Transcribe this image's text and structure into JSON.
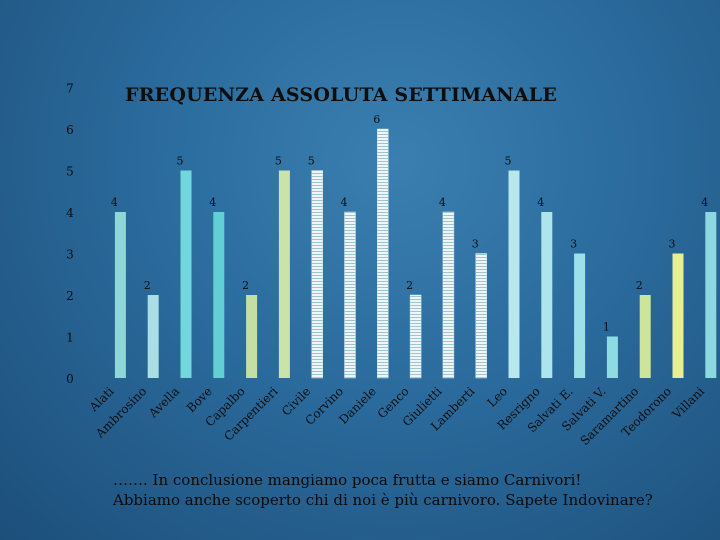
{
  "chart_data": {
    "type": "bar",
    "title": "FREQUENZA ASSOLUTA SETTIMANALE",
    "xlabel": "",
    "ylabel": "",
    "ylim": [
      0,
      7
    ],
    "yticks": [
      "0",
      "1",
      "2",
      "3",
      "4",
      "5",
      "6",
      "7"
    ],
    "grid": false,
    "categories": [
      "Alati",
      "Ambrosino",
      "Avella",
      "Bove",
      "Capalbo",
      "Carpentieri",
      "Civile",
      "Corvino",
      "Daniele",
      "Genco",
      "Giulietti",
      "Lamberti",
      "Leo",
      "Resrigno",
      "Salvati E.",
      "Salvati V.",
      "Saramartino",
      "Teodorono",
      "Villani"
    ],
    "values": [
      4,
      2,
      5,
      4,
      2,
      5,
      5,
      4,
      6,
      2,
      4,
      3,
      5,
      4,
      3,
      1,
      2,
      3,
      4
    ],
    "colors": [
      "#8fd6d8",
      "#a9dfe4",
      "#72d6dc",
      "#62cfd4",
      "#c2dfa6",
      "#c9e3a8",
      "#e9f2f4",
      "#d6ecee",
      "#d6ecee",
      "#d6ecee",
      "#dcf0a0",
      "#dcf0a0",
      "#b8e8ee",
      "#aee4ec",
      "#9de0e8",
      "#8fdbe4",
      "#cce59a",
      "#e7ef95",
      "#8dd8e0"
    ],
    "patterned": [
      false,
      false,
      false,
      false,
      false,
      false,
      true,
      true,
      true,
      true,
      true,
      true,
      false,
      false,
      false,
      false,
      false,
      false,
      false
    ]
  },
  "caption": {
    "line1": "……. In conclusione mangiamo poca frutta e siamo Carnivori!",
    "line2": "Abbiamo anche scoperto chi di noi è più carnivoro. Sapete Indovinare?"
  }
}
